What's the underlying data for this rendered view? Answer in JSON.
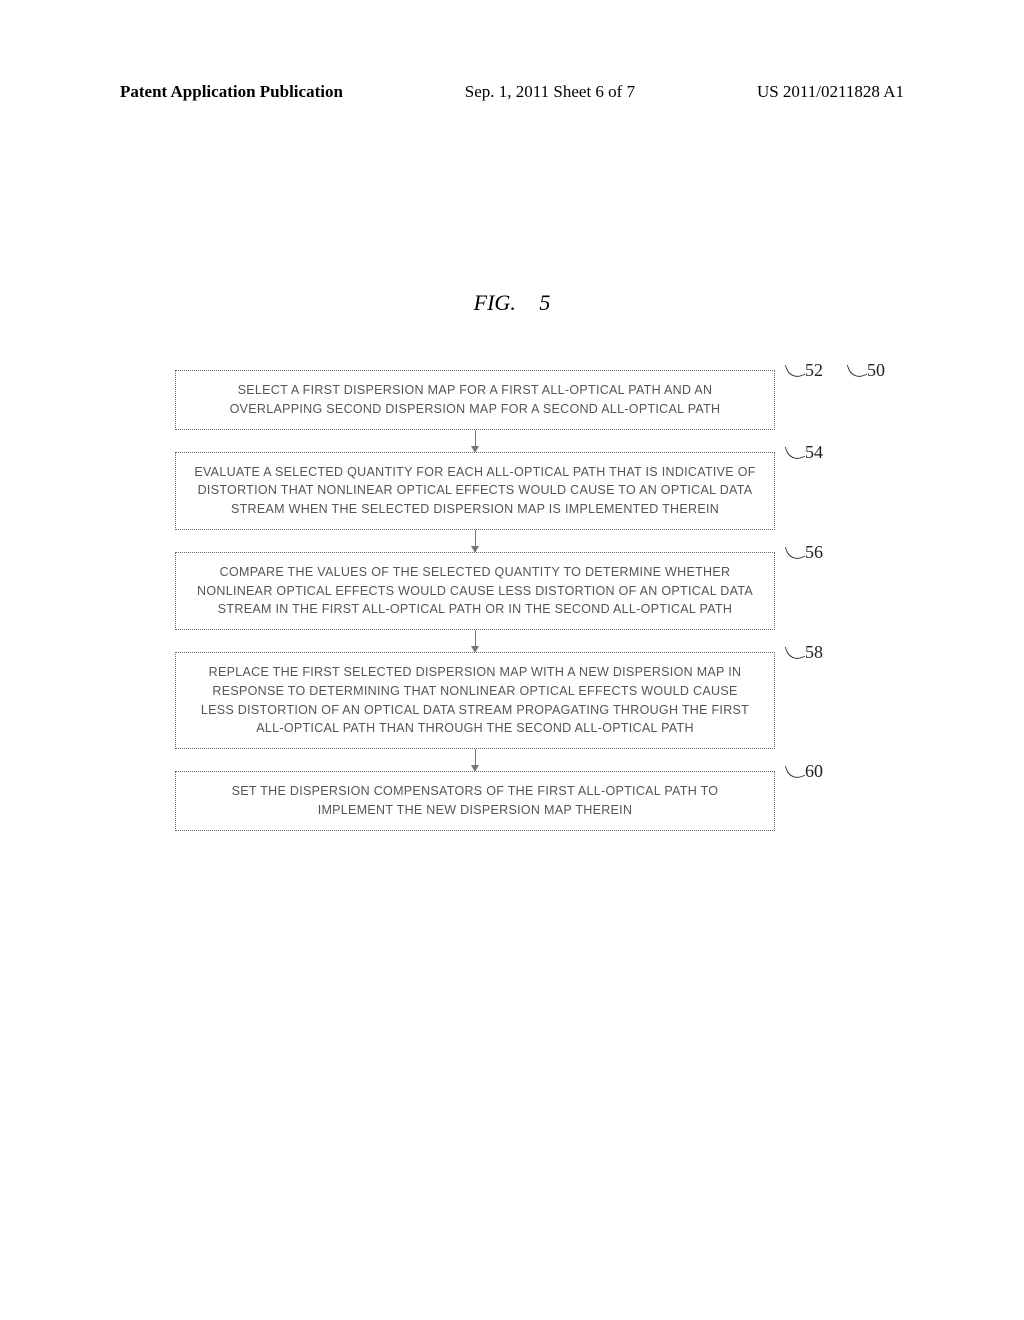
{
  "header": {
    "left": "Patent Application Publication",
    "center": "Sep. 1, 2011  Sheet 6 of 7",
    "right": "US 2011/0211828 A1"
  },
  "figure": {
    "title_prefix": "FIG.",
    "title_number": "5",
    "overall_ref": "50",
    "boxes": [
      {
        "ref": "52",
        "text": "SELECT A FIRST DISPERSION MAP FOR A FIRST ALL-OPTICAL PATH AND AN OVERLAPPING SECOND DISPERSION MAP FOR A SECOND ALL-OPTICAL PATH"
      },
      {
        "ref": "54",
        "text": "EVALUATE A SELECTED QUANTITY FOR EACH ALL-OPTICAL PATH THAT IS INDICATIVE OF DISTORTION THAT NONLINEAR OPTICAL EFFECTS WOULD CAUSE TO AN OPTICAL DATA STREAM WHEN THE SELECTED DISPERSION MAP IS IMPLEMENTED THEREIN"
      },
      {
        "ref": "56",
        "text": "COMPARE THE VALUES OF THE SELECTED QUANTITY TO DETERMINE WHETHER NONLINEAR OPTICAL EFFECTS WOULD CAUSE LESS DISTORTION OF AN OPTICAL DATA STREAM IN THE FIRST ALL-OPTICAL PATH OR IN THE SECOND ALL-OPTICAL PATH"
      },
      {
        "ref": "58",
        "text": "REPLACE THE FIRST SELECTED DISPERSION MAP WITH A NEW DISPERSION MAP IN RESPONSE TO DETERMINING THAT NONLINEAR OPTICAL EFFECTS WOULD CAUSE LESS DISTORTION OF AN OPTICAL DATA STREAM PROPAGATING THROUGH THE FIRST ALL-OPTICAL PATH THAN THROUGH THE SECOND ALL-OPTICAL PATH"
      },
      {
        "ref": "60",
        "text": "SET THE DISPERSION COMPENSATORS OF THE FIRST ALL-OPTICAL PATH TO IMPLEMENT THE NEW DISPERSION MAP THEREIN"
      }
    ]
  }
}
